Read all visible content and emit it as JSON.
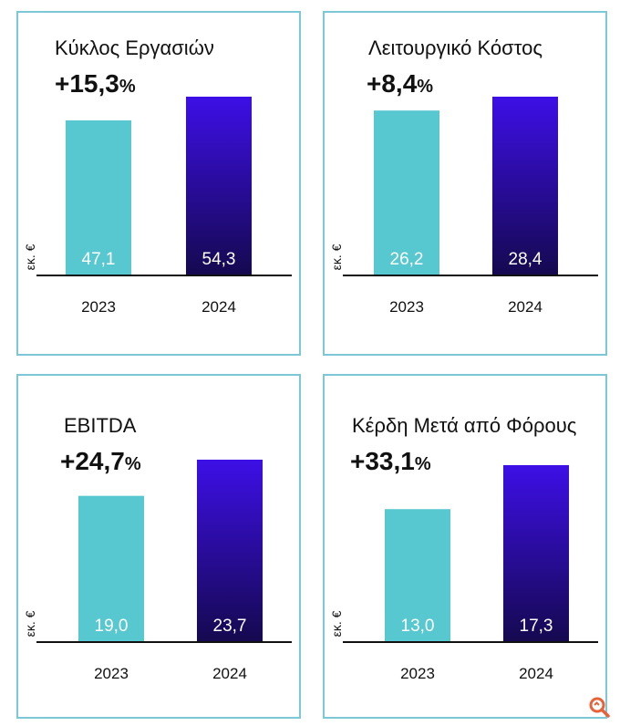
{
  "colors": {
    "border": "#7cc8d6",
    "bar_2023": "#57c7d0",
    "bar_2024_top": "#3d0fe6",
    "bar_2024_bottom": "#15094f",
    "value_text": "#ffffff",
    "watermark": "#e8623a"
  },
  "chart_data": [
    {
      "type": "bar",
      "title": "Κύκλος Εργασιών",
      "change": "+15,3",
      "change_unit": "%",
      "ylabel": "εκ. €",
      "categories": [
        "2023",
        "2024"
      ],
      "values": [
        47.1,
        54.3
      ],
      "value_labels": [
        "47,1",
        "54,3"
      ]
    },
    {
      "type": "bar",
      "title": "Λειτουργικό Κόστος",
      "change": "+8,4",
      "change_unit": "%",
      "ylabel": "εκ. €",
      "categories": [
        "2023",
        "2024"
      ],
      "values": [
        26.2,
        28.4
      ],
      "value_labels": [
        "26,2",
        "28,4"
      ]
    },
    {
      "type": "bar",
      "title": "EBITDA",
      "change": "+24,7",
      "change_unit": "%",
      "ylabel": "εκ. €",
      "categories": [
        "2023",
        "2024"
      ],
      "values": [
        19.0,
        23.7
      ],
      "value_labels": [
        "19,0",
        "23,7"
      ]
    },
    {
      "type": "bar",
      "title": "Κέρδη Μετά από Φόρους",
      "change": "+33,1",
      "change_unit": "%",
      "ylabel": "εκ. €",
      "categories": [
        "2023",
        "2024"
      ],
      "values": [
        13.0,
        17.3
      ],
      "value_labels": [
        "13,0",
        "17,3"
      ]
    }
  ],
  "watermark_icon": "magnifier-logo-icon"
}
